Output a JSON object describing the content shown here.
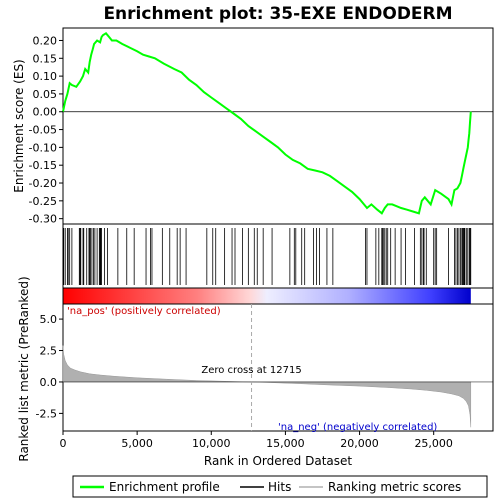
{
  "chart_data": {
    "type": "line",
    "title": "Enrichment plot: 35-EXE ENDODERM",
    "xlabel": "Rank in Ordered Dataset",
    "top_ylabel": "Enrichment score (ES)",
    "bottom_ylabel": "Ranked list metric (PreRanked)",
    "xlim": [
      0,
      29000
    ],
    "top_ylim": [
      -0.315,
      0.235
    ],
    "bottom_ylim": [
      -3.9,
      6.2
    ],
    "x_ticks": [
      0,
      5000,
      10000,
      15000,
      20000,
      25000
    ],
    "x_tick_labels": [
      "0",
      "5,000",
      "10,000",
      "15,000",
      "20,000",
      "25,000"
    ],
    "top_y_ticks": [
      -0.3,
      -0.25,
      -0.2,
      -0.15,
      -0.1,
      -0.05,
      0.0,
      0.05,
      0.1,
      0.15,
      0.2
    ],
    "top_y_tick_labels": [
      "-0.30",
      "-0.25",
      "-0.20",
      "-0.15",
      "-0.10",
      "-0.05",
      "0.00",
      "0.05",
      "0.10",
      "0.15",
      "0.20"
    ],
    "bottom_y_ticks": [
      -2.5,
      0.0,
      2.5,
      5.0
    ],
    "bottom_y_tick_labels": [
      "-2.5",
      "0.0",
      "2.5",
      "5.0"
    ],
    "total_genes": 27500,
    "zero_cross": 12715,
    "zero_cross_label": "Zero cross at 12715",
    "pos_label": "'na_pos' (positively correlated)",
    "neg_label": "'na_neg' (negatively correlated)",
    "legend": [
      {
        "label": "Enrichment profile",
        "color": "#00ff00"
      },
      {
        "label": "Hits",
        "color": "#000000"
      },
      {
        "label": "Ranking metric scores",
        "color": "#b0b0b0"
      }
    ],
    "colors": {
      "profile": "#00ff00",
      "hits": "#000000",
      "metric": "#b0b0b0",
      "pos": "#ff0000",
      "neg": "#0000ff"
    },
    "enrichment_profile": {
      "x": [
        0,
        150,
        300,
        450,
        600,
        900,
        1150,
        1350,
        1500,
        1700,
        1800,
        1900,
        2000,
        2100,
        2300,
        2500,
        2600,
        2700,
        2900,
        3100,
        3300,
        3600,
        4000,
        4500,
        5000,
        5400,
        5800,
        6200,
        6800,
        7500,
        8000,
        8500,
        9000,
        9500,
        10000,
        10500,
        11000,
        11500,
        12000,
        12500,
        13000,
        13500,
        14000,
        14500,
        15000,
        15500,
        16000,
        16500,
        17000,
        17500,
        18000,
        18500,
        19000,
        19500,
        20000,
        20300,
        20500,
        20800,
        21200,
        21500,
        21700,
        21900,
        22200,
        22500,
        22800,
        23200,
        23600,
        24000,
        24200,
        24400,
        24800,
        25100,
        25500,
        26000,
        26200,
        26400,
        26600,
        26800,
        26900,
        27000,
        27100,
        27200,
        27300,
        27350,
        27400,
        27450,
        27500
      ],
      "y": [
        0.0,
        0.03,
        0.05,
        0.08,
        0.075,
        0.07,
        0.085,
        0.1,
        0.12,
        0.11,
        0.14,
        0.16,
        0.175,
        0.19,
        0.2,
        0.195,
        0.21,
        0.215,
        0.22,
        0.21,
        0.2,
        0.2,
        0.19,
        0.18,
        0.17,
        0.16,
        0.155,
        0.15,
        0.135,
        0.12,
        0.11,
        0.09,
        0.075,
        0.055,
        0.04,
        0.025,
        0.01,
        -0.005,
        -0.02,
        -0.04,
        -0.055,
        -0.07,
        -0.085,
        -0.1,
        -0.12,
        -0.135,
        -0.145,
        -0.16,
        -0.165,
        -0.17,
        -0.18,
        -0.195,
        -0.21,
        -0.225,
        -0.245,
        -0.26,
        -0.27,
        -0.26,
        -0.275,
        -0.285,
        -0.27,
        -0.26,
        -0.26,
        -0.265,
        -0.27,
        -0.275,
        -0.28,
        -0.285,
        -0.25,
        -0.24,
        -0.26,
        -0.22,
        -0.23,
        -0.245,
        -0.26,
        -0.22,
        -0.215,
        -0.2,
        -0.18,
        -0.16,
        -0.14,
        -0.12,
        -0.1,
        -0.08,
        -0.06,
        -0.03,
        0.0
      ]
    },
    "hits_x": [
      50,
      150,
      300,
      350,
      450,
      600,
      1100,
      1150,
      1200,
      1350,
      1400,
      1600,
      1750,
      1800,
      1850,
      1950,
      2050,
      2150,
      2300,
      2450,
      2500,
      2550,
      2600,
      2800,
      3000,
      3700,
      4300,
      4800,
      5600,
      5900,
      6000,
      6700,
      7200,
      7700,
      7900,
      8300,
      9700,
      10100,
      10300,
      10900,
      11400,
      11600,
      12100,
      12500,
      12900,
      13100,
      13500,
      14100,
      15300,
      15600,
      15700,
      16100,
      16300,
      16900,
      17100,
      17300,
      17800,
      18200,
      20400,
      20500,
      21100,
      21300,
      21500,
      21550,
      21600,
      21700,
      21800,
      21900,
      22100,
      22400,
      22800,
      23100,
      23700,
      24100,
      24200,
      24300,
      24350,
      24500,
      25000,
      25100,
      25200,
      26000,
      26400,
      26500,
      26600,
      26700,
      26800,
      26900,
      26950,
      27000,
      27050,
      27100,
      27200,
      27300,
      27400,
      27450,
      27500
    ],
    "metric_curve": {
      "x": [
        0,
        50,
        150,
        300,
        500,
        800,
        1200,
        1800,
        2500,
        3500,
        5000,
        7000,
        9000,
        11000,
        12715,
        14000,
        16000,
        18000,
        20000,
        22000,
        23500,
        24500,
        25500,
        26200,
        26700,
        27000,
        27200,
        27350,
        27450,
        27500
      ],
      "y": [
        2.9,
        2.2,
        1.7,
        1.35,
        1.1,
        0.95,
        0.8,
        0.65,
        0.55,
        0.45,
        0.33,
        0.22,
        0.12,
        0.05,
        0.0,
        -0.05,
        -0.14,
        -0.24,
        -0.33,
        -0.45,
        -0.56,
        -0.66,
        -0.8,
        -0.95,
        -1.1,
        -1.3,
        -1.55,
        -1.9,
        -2.6,
        -3.6
      ]
    }
  }
}
